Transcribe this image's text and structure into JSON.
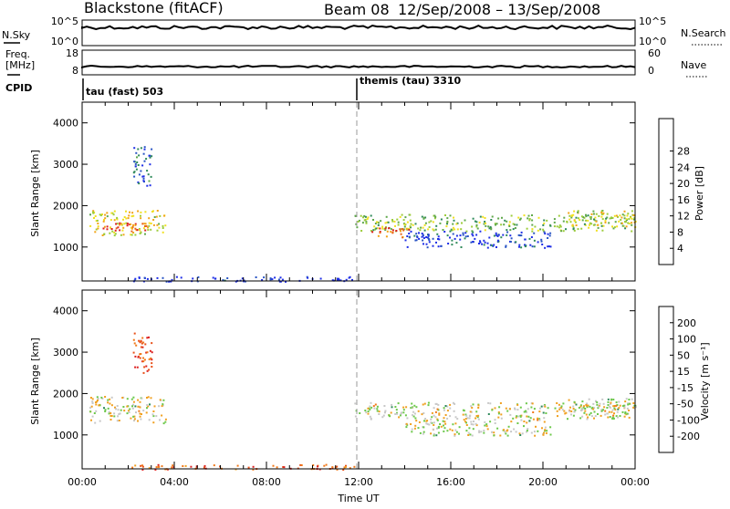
{
  "header": {
    "station": "Blackstone (fitACF)",
    "beam": "Beam 08",
    "dates": "12/Sep/2008 – 13/Sep/2008"
  },
  "strip_labels": {
    "nsky": "N.Sky",
    "nsky_lo": "10^0",
    "nsky_hi": "10^5",
    "nsearch": "N.Search",
    "nsearch_lo": "10^0",
    "nsearch_hi": "10^5",
    "freq": "Freq.",
    "freq_unit": "[MHz]",
    "freq_lo": "8",
    "freq_hi": "18",
    "nave": "Nave",
    "nave_lo": "0",
    "nave_hi": "60",
    "cpid": "CPID",
    "cpid_mode1": "tau (fast) 503",
    "cpid_mode2": "themis (tau) 3310"
  },
  "chart_data": [
    {
      "type": "heatmap",
      "title": "",
      "ylabel": "Slant Range [km]",
      "xlabel": "",
      "x_range": [
        "00:00",
        "24:00"
      ],
      "ylim": [
        180,
        4500
      ],
      "y_ticks": [
        "1000",
        "2000",
        "3000",
        "4000"
      ],
      "colorbar": {
        "label": "Power [dB]",
        "ticks": [
          "4",
          "8",
          "12",
          "16",
          "20",
          "24",
          "28"
        ],
        "colors": [
          "#1e2ee6",
          "#2a55c4",
          "#2f8a5a",
          "#5fa84a",
          "#9ccc3a",
          "#f0e020",
          "#f2a418",
          "#e86418",
          "#dc1e1e"
        ]
      },
      "scatter_bands": [
        {
          "t0": 0.3,
          "t1": 3.6,
          "r0": 1300,
          "r1": 1900,
          "level": 0.6
        },
        {
          "t0": 0.4,
          "t1": 2.8,
          "r0": 1400,
          "r1": 1600,
          "level": 0.9
        },
        {
          "t0": 2.2,
          "t1": 3.0,
          "r0": 2500,
          "r1": 3500,
          "level": 0.2
        },
        {
          "t0": 2.0,
          "t1": 11.9,
          "r0": 180,
          "r1": 300,
          "level": 0.05
        },
        {
          "t0": 11.8,
          "t1": 24.0,
          "r0": 1400,
          "r1": 1800,
          "level": 0.45
        },
        {
          "t0": 12.4,
          "t1": 14.2,
          "r0": 1250,
          "r1": 1500,
          "level": 0.8
        },
        {
          "t0": 14.0,
          "t1": 20.3,
          "r0": 1000,
          "r1": 1400,
          "level": 0.1
        },
        {
          "t0": 21.0,
          "t1": 24.0,
          "r0": 1500,
          "r1": 1900,
          "level": 0.55
        }
      ]
    },
    {
      "type": "heatmap",
      "title": "",
      "ylabel": "Slant Range [km]",
      "xlabel": "Time UT",
      "x_ticks": [
        "00:00",
        "04:00",
        "08:00",
        "12:00",
        "16:00",
        "20:00",
        "00:00"
      ],
      "ylim": [
        180,
        4500
      ],
      "y_ticks": [
        "1000",
        "2000",
        "3000",
        "4000"
      ],
      "colorbar": {
        "label": "Velocity [m s⁻¹]",
        "ticks": [
          "200",
          "100",
          "50",
          "15",
          "-15",
          "-50",
          "-100",
          "-200"
        ],
        "colors": [
          "#1e2ee6",
          "#2f6fb0",
          "#2f8a5a",
          "#6cc84a",
          "#c8c8c8",
          "#f0a020",
          "#f07818",
          "#e85018",
          "#dc1e1e"
        ]
      },
      "scatter_bands": [
        {
          "t0": 0.3,
          "t1": 3.6,
          "r0": 1300,
          "r1": 1950,
          "level": 0.5
        },
        {
          "t0": 2.2,
          "t1": 3.0,
          "r0": 2500,
          "r1": 3500,
          "level": 0.85
        },
        {
          "t0": 2.0,
          "t1": 11.9,
          "r0": 180,
          "r1": 300,
          "level": 0.8
        },
        {
          "t0": 11.8,
          "t1": 24.0,
          "r0": 1400,
          "r1": 1800,
          "level": 0.5
        },
        {
          "t0": 14.0,
          "t1": 20.3,
          "r0": 1000,
          "r1": 1400,
          "level": 0.5
        },
        {
          "t0": 21.0,
          "t1": 24.0,
          "r0": 1500,
          "r1": 1900,
          "level": 0.5
        }
      ]
    }
  ]
}
